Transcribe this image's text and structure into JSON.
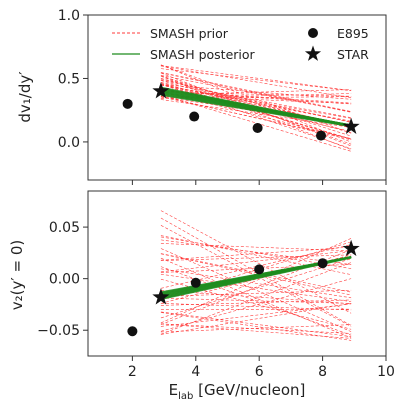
{
  "chart_data": [
    {
      "type": "line",
      "panel": "top",
      "ylabel": "dv₁/dy′",
      "xlim": [
        0.6,
        10
      ],
      "ylim": [
        -0.3,
        1.0
      ],
      "yticks": [
        1.0,
        0.5,
        0.0
      ],
      "ytick_labels": [
        "1.0",
        "0.5",
        "0.0"
      ],
      "xticks": [
        2,
        4,
        6,
        8,
        10
      ],
      "legend": {
        "placement": "top",
        "entries": [
          "SMASH prior",
          "SMASH posterior",
          "E895",
          "STAR"
        ]
      },
      "series": [
        {
          "name": "E895",
          "marker": "circle",
          "x": [
            1.85,
            3.95,
            5.95,
            7.95
          ],
          "y": [
            0.3,
            0.2,
            0.11,
            0.05
          ]
        },
        {
          "name": "STAR",
          "marker": "star",
          "x": [
            2.9,
            8.9
          ],
          "y": [
            0.4,
            0.12
          ]
        }
      ],
      "prior_band": {
        "name": "SMASH prior",
        "x": [
          2.9,
          8.9
        ],
        "y_start_range": [
          0.32,
          0.62
        ],
        "y_end_range": [
          -0.1,
          0.42
        ],
        "count": 40
      },
      "posterior_band": {
        "name": "SMASH posterior",
        "x": [
          2.9,
          8.9
        ],
        "y_start": [
          0.37,
          0.43
        ],
        "y_end": [
          0.1,
          0.17
        ],
        "count": 10
      }
    },
    {
      "type": "line",
      "panel": "bottom",
      "ylabel": "v₂(y′ = 0)",
      "xlabel_main": "E",
      "xlabel_sub": "lab",
      "xlabel_units": " [GeV/nucleon]",
      "xlim": [
        0.6,
        10
      ],
      "ylim": [
        -0.075,
        0.085
      ],
      "yticks": [
        0.05,
        0.0,
        -0.05
      ],
      "ytick_labels": [
        "0.05",
        "0.00",
        "−0.05"
      ],
      "xticks": [
        2,
        4,
        6,
        8,
        10
      ],
      "xtick_labels": [
        "2",
        "4",
        "6",
        "8",
        "10"
      ],
      "series": [
        {
          "name": "E895",
          "marker": "circle",
          "x": [
            2.0,
            4.0,
            6.0,
            8.0
          ],
          "y": [
            -0.051,
            -0.004,
            0.009,
            0.015
          ]
        },
        {
          "name": "STAR",
          "marker": "star",
          "x": [
            2.9,
            8.9
          ],
          "y": [
            -0.018,
            0.029
          ]
        }
      ],
      "prior_band": {
        "name": "SMASH prior",
        "x": [
          2.9,
          8.9
        ],
        "y_start_range": [
          -0.055,
          0.08
        ],
        "y_end_range": [
          -0.06,
          0.04
        ],
        "count": 40
      },
      "posterior_band": {
        "name": "SMASH posterior",
        "x": [
          2.9,
          8.9
        ],
        "y_start": [
          -0.02,
          -0.013
        ],
        "y_end": [
          0.018,
          0.025
        ],
        "count": 10
      }
    }
  ],
  "colors": {
    "prior": "#ff3b3b",
    "posterior": "#1e8c1e",
    "data": "#111111",
    "axes": "#333333"
  }
}
